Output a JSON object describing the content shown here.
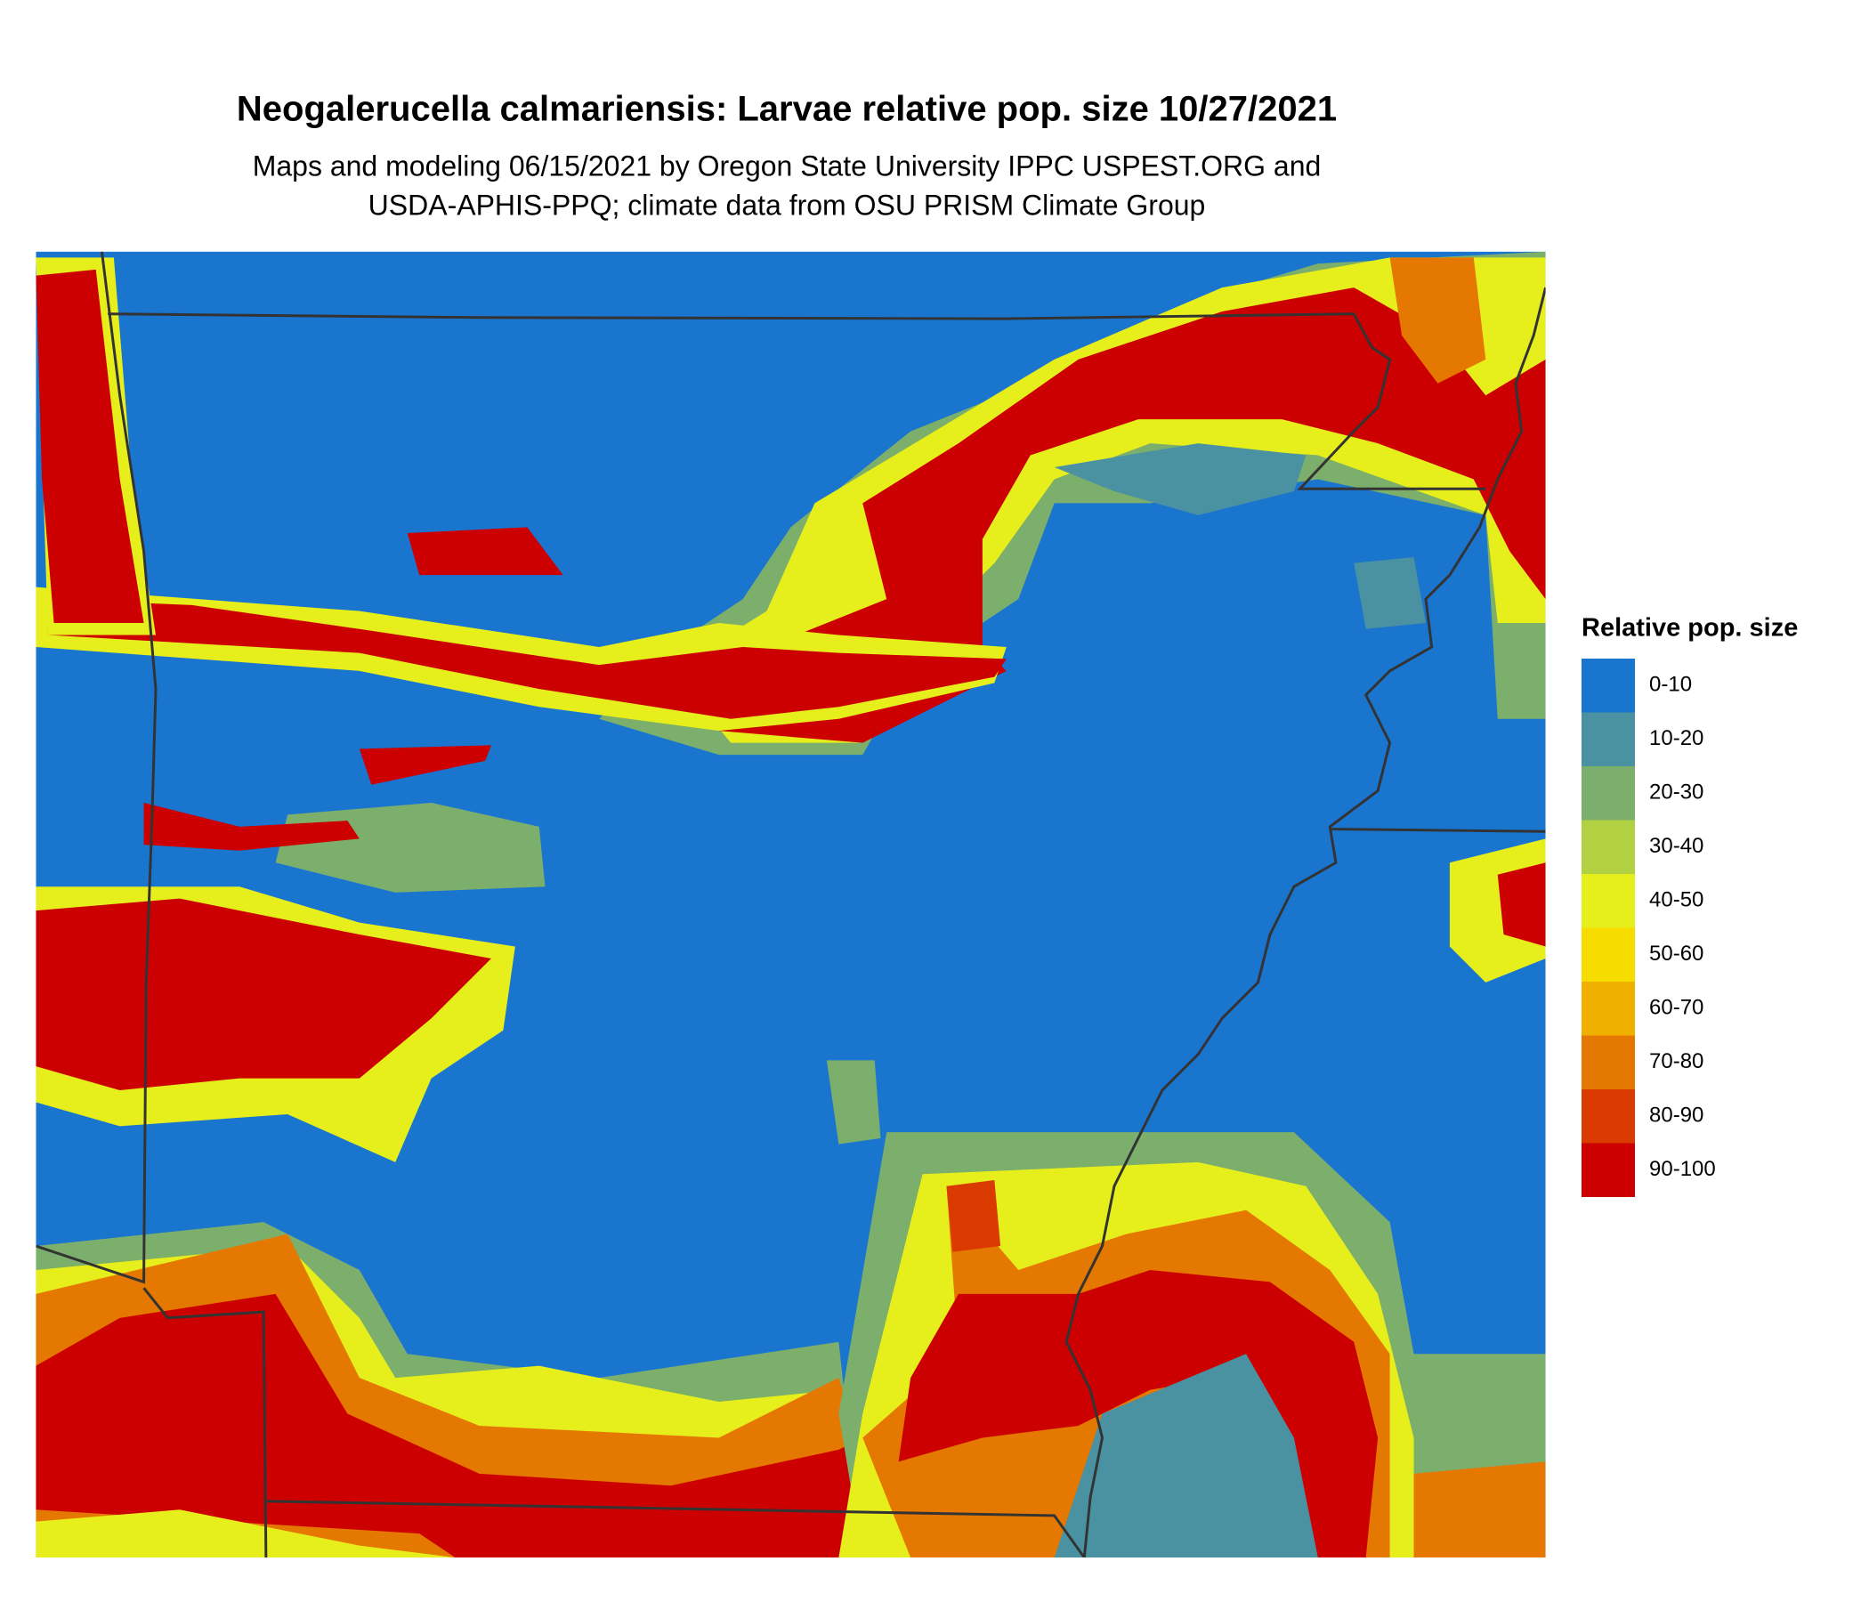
{
  "header": {
    "title": "Neogalerucella calmariensis: Larvae relative pop. size 10/27/2021",
    "subtitle": [
      "Maps and modeling 06/15/2021 by Oregon State University IPPC USPEST.ORG and",
      "USDA-APHIS-PPQ; climate data from OSU PRISM Climate Group"
    ]
  },
  "legend": {
    "title": "Relative pop. size",
    "items": [
      {
        "label": "0-10",
        "color": "#1a75cf"
      },
      {
        "label": "10-20",
        "color": "#4a92a2"
      },
      {
        "label": "20-30",
        "color": "#7cae6c"
      },
      {
        "label": "30-40",
        "color": "#b2d142"
      },
      {
        "label": "40-50",
        "color": "#e6ef1c"
      },
      {
        "label": "50-60",
        "color": "#f7dc00"
      },
      {
        "label": "60-70",
        "color": "#efb000"
      },
      {
        "label": "70-80",
        "color": "#e57800"
      },
      {
        "label": "80-90",
        "color": "#da3a00"
      },
      {
        "label": "90-100",
        "color": "#cc0000"
      }
    ]
  }
}
